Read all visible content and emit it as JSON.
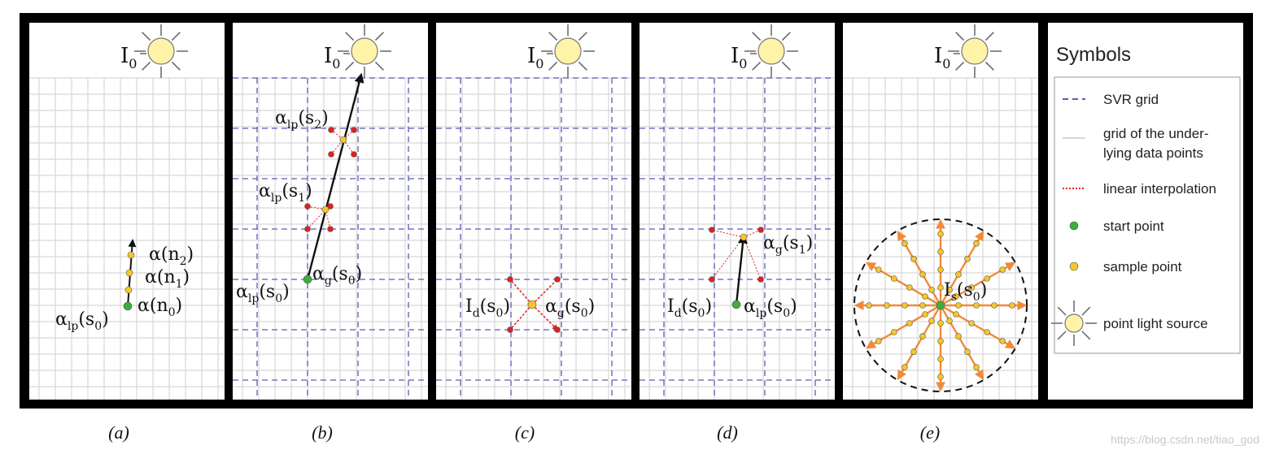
{
  "colors": {
    "frame": "#000000",
    "panel": "#ffffff",
    "data_grid": "#d7d7d7",
    "svr_grid": "#5b5bb8",
    "interpolation": "#e02020",
    "start_point": "#3cae3c",
    "sample_point": "#f7c62a",
    "light_fill": "#fff3a8",
    "arrow": "#111111",
    "ray": "#f08a3a"
  },
  "light_label": {
    "base": "I",
    "sub": "0"
  },
  "panels": {
    "a": {
      "caption": "(a)",
      "labels": {
        "n2": {
          "base": "α",
          "sub": "2",
          "pre": "(n",
          "post": ")"
        },
        "n1": {
          "base": "α",
          "sub": "1",
          "pre": "(n",
          "post": ")"
        },
        "n0": {
          "base": "α",
          "sub": "0",
          "pre": "(n",
          "post": ")"
        },
        "s0": {
          "base": "α",
          "lsub": "lp",
          "pre": "(s",
          "sub": "0",
          "post": ")"
        }
      }
    },
    "b": {
      "caption": "(b)",
      "labels": {
        "s2": {
          "base": "α",
          "lsub": "lp",
          "pre": "(s",
          "sub": "2",
          "post": ")"
        },
        "s1": {
          "base": "α",
          "lsub": "lp",
          "pre": "(s",
          "sub": "1",
          "post": ")"
        },
        "g0": {
          "base": "α",
          "lsub": "g",
          "pre": "(s",
          "sub": "0",
          "post": ")"
        },
        "lp0": {
          "base": "α",
          "lsub": "lp",
          "pre": "(s",
          "sub": "0",
          "post": ")"
        }
      }
    },
    "c": {
      "caption": "(c)",
      "labels": {
        "id0": {
          "base": "I",
          "lsub": "d",
          "pre": "(s",
          "sub": "0",
          "post": ")"
        },
        "g0": {
          "base": "α",
          "lsub": "g",
          "pre": "(s",
          "sub": "0",
          "post": ")"
        }
      }
    },
    "d": {
      "caption": "(d)",
      "labels": {
        "g1": {
          "base": "α",
          "lsub": "g",
          "pre": "(s",
          "sub": "1",
          "post": ")"
        },
        "id0": {
          "base": "I",
          "lsub": "d",
          "pre": "(s",
          "sub": "0",
          "post": ")"
        },
        "lp0": {
          "base": "α",
          "lsub": "lp",
          "pre": "(s",
          "sub": "0",
          "post": ")"
        }
      }
    },
    "e": {
      "caption": "(e)",
      "labels": {
        "is0": {
          "base": "I",
          "lsub": "s",
          "pre": "(s",
          "sub": "0",
          "post": ")"
        }
      }
    }
  },
  "legend": {
    "title": "Symbols",
    "items": [
      {
        "key": "svr",
        "lines": [
          "SVR grid"
        ]
      },
      {
        "key": "data",
        "lines": [
          "grid of the under-",
          "lying data points"
        ]
      },
      {
        "key": "interp",
        "lines": [
          "linear interpolation"
        ]
      },
      {
        "key": "start",
        "lines": [
          "start point"
        ]
      },
      {
        "key": "sample",
        "lines": [
          "sample point"
        ]
      },
      {
        "key": "light",
        "lines": [
          "point light source"
        ]
      }
    ]
  },
  "watermark": "https://blog.csdn.net/tiao_god"
}
